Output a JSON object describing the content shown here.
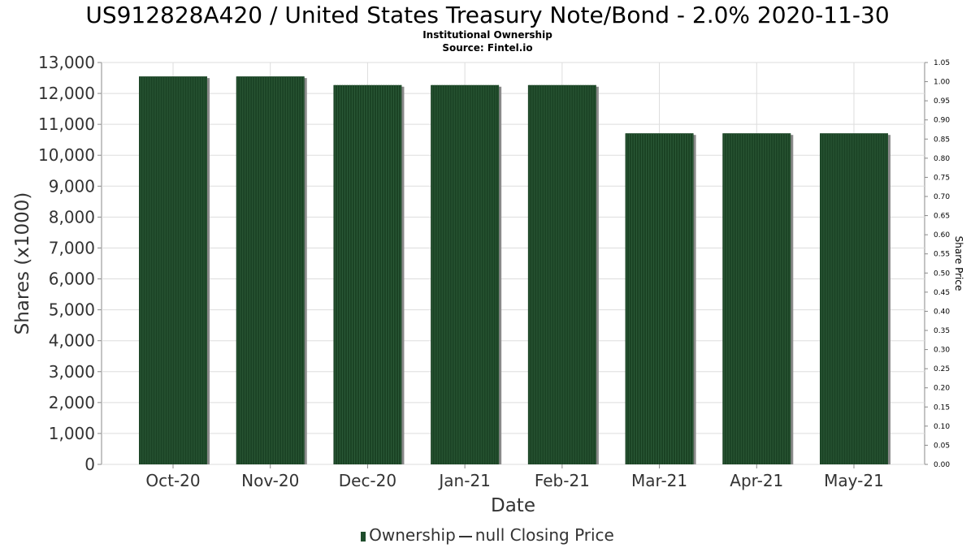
{
  "title": "US912828A420 / United States Treasury Note/Bond - 2.0% 2020-11-30",
  "subtitle": "Institutional Ownership",
  "source": "Source: Fintel.io",
  "legend": {
    "ownership_label": "Ownership",
    "price_label": "null Closing Price"
  },
  "colors": {
    "bar": "#1a4224",
    "bar_shadow": "#8a8a8a",
    "grid": "#dddddd",
    "axis": "#888888"
  },
  "chart_data": {
    "type": "bar",
    "categories": [
      "Oct-20",
      "Nov-20",
      "Dec-20",
      "Jan-21",
      "Feb-21",
      "Mar-21",
      "Apr-21",
      "May-21"
    ],
    "series": [
      {
        "name": "Ownership",
        "values": [
          12550,
          12550,
          12270,
          12270,
          12270,
          10710,
          10710,
          10710
        ]
      }
    ],
    "xlabel": "Date",
    "ylabel": "Shares (x1000)",
    "ylim": [
      0,
      13000
    ],
    "yticks": [
      0,
      1000,
      2000,
      3000,
      4000,
      5000,
      6000,
      7000,
      8000,
      9000,
      10000,
      11000,
      12000,
      13000
    ],
    "ytick_labels": [
      "0",
      "1,000",
      "2,000",
      "3,000",
      "4,000",
      "5,000",
      "6,000",
      "7,000",
      "8,000",
      "9,000",
      "10,000",
      "11,000",
      "12,000",
      "13,000"
    ],
    "y2label": "Share Price",
    "y2lim": [
      0,
      1.05
    ],
    "y2ticks": [
      0.0,
      0.05,
      0.1,
      0.15,
      0.2,
      0.25,
      0.3,
      0.35,
      0.4,
      0.45,
      0.5,
      0.55,
      0.6,
      0.65,
      0.7,
      0.75,
      0.8,
      0.85,
      0.9,
      0.95,
      1.0,
      1.05
    ],
    "y2tick_labels": [
      "0.00",
      "0.05",
      "0.10",
      "0.15",
      "0.20",
      "0.25",
      "0.30",
      "0.35",
      "0.40",
      "0.45",
      "0.50",
      "0.55",
      "0.60",
      "0.65",
      "0.70",
      "0.75",
      "0.80",
      "0.85",
      "0.90",
      "0.95",
      "1.00",
      "1.05"
    ],
    "grid": true,
    "legend_position": "bottom"
  }
}
